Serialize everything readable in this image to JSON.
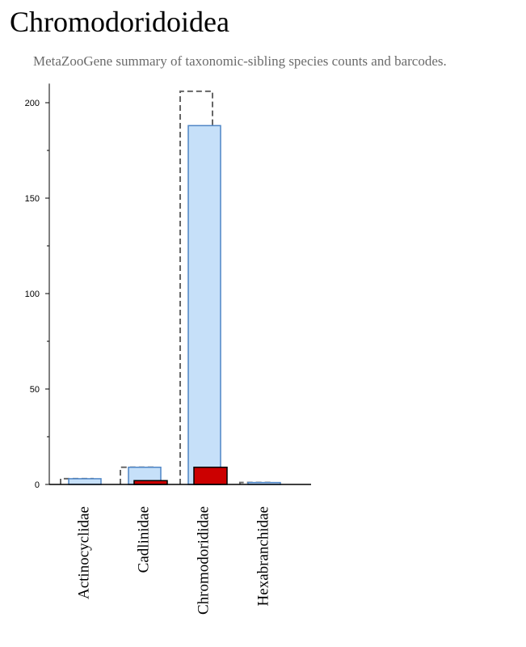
{
  "page": {
    "title": "Chromodoridoidea",
    "subtitle": "MetaZooGene summary of taxonomic-sibling species counts and barcodes."
  },
  "chart_data": {
    "type": "bar",
    "title": "Chromodoridoidea",
    "subtitle": "MetaZooGene summary of taxonomic-sibling species counts and barcodes.",
    "xlabel": "",
    "ylabel": "",
    "categories": [
      "Actinocyclidae",
      "Cadlinidae",
      "Chromodorididae",
      "Hexabranchidae"
    ],
    "series": [
      {
        "key": "outline",
        "values": [
          3,
          9,
          206,
          1
        ],
        "style": "dashed-outline",
        "color": "#666666"
      },
      {
        "key": "light",
        "values": [
          3,
          9,
          188,
          1
        ],
        "style": "filled",
        "color": "#c6e0f9",
        "stroke": "#4f86c6"
      },
      {
        "key": "red",
        "values": [
          0,
          2,
          9,
          0
        ],
        "style": "filled",
        "color": "#cc0000",
        "stroke": "#000000"
      }
    ],
    "ylim": [
      0,
      210
    ],
    "yticks": [
      0,
      50,
      100,
      150,
      200
    ],
    "yminor": [
      25,
      75,
      125,
      175
    ],
    "grid": false,
    "legend": "none"
  }
}
